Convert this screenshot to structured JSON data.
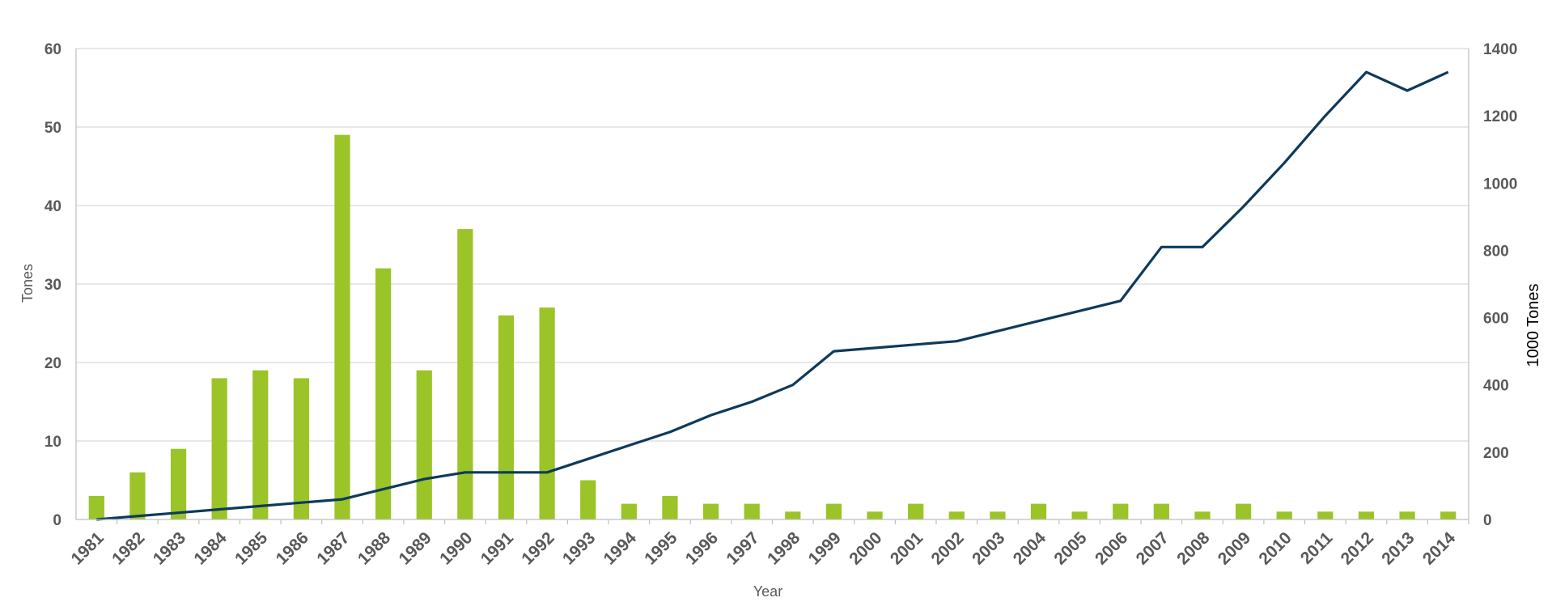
{
  "chart_data": {
    "type": "bar+line",
    "title": "",
    "xlabel": "Year",
    "ylabel_left": "Tones",
    "ylabel_right": "1000 Tones",
    "categories": [
      "1981",
      "1982",
      "1983",
      "1984",
      "1985",
      "1986",
      "1987",
      "1988",
      "1989",
      "1990",
      "1991",
      "1992",
      "1993",
      "1994",
      "1995",
      "1996",
      "1997",
      "1998",
      "1999",
      "2000",
      "2001",
      "2002",
      "2003",
      "2004",
      "2005",
      "2006",
      "2007",
      "2008",
      "2009",
      "2010",
      "2011",
      "2012",
      "2013",
      "2014"
    ],
    "ylim_left": [
      0,
      60
    ],
    "yticks_left": [
      0,
      10,
      20,
      30,
      40,
      50,
      60
    ],
    "ylim_right": [
      0,
      1400
    ],
    "yticks_right": [
      0,
      200,
      400,
      600,
      800,
      1000,
      1200,
      1400
    ],
    "grid": true,
    "legend": "none",
    "series": [
      {
        "type": "bar",
        "axis": "left",
        "color": "#9BC428",
        "values": [
          3,
          6,
          9,
          18,
          19,
          18,
          49,
          32,
          19,
          37,
          26,
          27,
          5,
          2,
          3,
          2,
          2,
          1,
          2,
          1,
          2,
          1,
          1,
          2,
          1,
          2,
          2,
          1,
          2,
          1,
          1,
          1,
          1,
          1
        ]
      },
      {
        "type": "line",
        "axis": "right",
        "color": "#0D3A5C",
        "values": [
          0,
          10,
          20,
          30,
          40,
          50,
          60,
          90,
          120,
          140,
          140,
          140,
          180,
          220,
          260,
          310,
          350,
          400,
          500,
          510,
          520,
          530,
          560,
          590,
          620,
          650,
          810,
          810,
          930,
          1060,
          1200,
          1330,
          1275,
          1330
        ]
      }
    ]
  }
}
